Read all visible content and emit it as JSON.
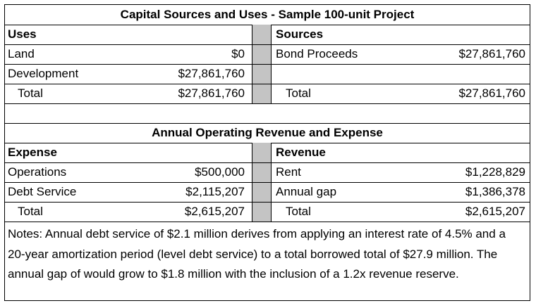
{
  "capital": {
    "title": "Capital Sources and Uses  - Sample 100-unit Project",
    "uses_header": "Uses",
    "sources_header": "Sources",
    "rows": [
      {
        "use_label": "Land",
        "use_value": "$0",
        "source_label": "Bond Proceeds",
        "source_value": "$27,861,760"
      },
      {
        "use_label": "Development",
        "use_value": "$27,861,760",
        "source_label": "",
        "source_value": ""
      },
      {
        "use_label": "Total",
        "use_value": "$27,861,760",
        "source_label": "Total",
        "source_value": "$27,861,760"
      }
    ]
  },
  "operating": {
    "title": "Annual Operating Revenue and Expense",
    "expense_header": "Expense",
    "revenue_header": "Revenue",
    "rows": [
      {
        "exp_label": "Operations",
        "exp_value": "$500,000",
        "rev_label": "Rent",
        "rev_value": "$1,228,829"
      },
      {
        "exp_label": "Debt Service",
        "exp_value": "$2,115,207",
        "rev_label": "Annual gap",
        "rev_value": "$1,386,378"
      },
      {
        "exp_label": "Total",
        "exp_value": "$2,615,207",
        "rev_label": "Total",
        "rev_value": "$2,615,207"
      }
    ]
  },
  "notes": "Notes:  Annual debt service of $2.1 million derives from applying an interest rate of 4.5% and a 20-year amortization period (level debt service) to a total borrowed total of $27.9 million.  The annual gap of would grow to $1.8 million with the inclusion of a 1.2x revenue reserve."
}
